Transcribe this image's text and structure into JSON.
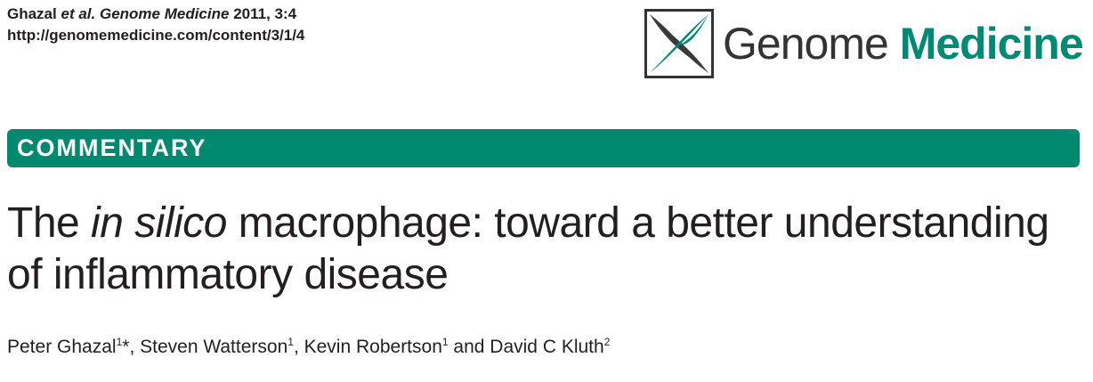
{
  "citation": {
    "authors_short": "Ghazal",
    "et_al": "et al.",
    "journal": "Genome Medicine",
    "year_vol": "2011, 3:4",
    "url": "http://genomemedicine.com/content/3/1/4"
  },
  "logo": {
    "word1": "Genome",
    "word2": "Medicine",
    "icon": "genome-medicine-logo-icon",
    "accent_color": "#008a73"
  },
  "banner": {
    "label": "COMMENTARY",
    "color": "#00896f"
  },
  "title": {
    "part1": "The ",
    "italic": "in silico",
    "part2": " macrophage: toward a better understanding of inflammatory disease"
  },
  "authors": [
    {
      "name": "Peter Ghazal",
      "affil": "1",
      "mark": "*"
    },
    {
      "name": "Steven Watterson",
      "affil": "1"
    },
    {
      "name": "Kevin Robertson",
      "affil": "1"
    },
    {
      "name": "David C Kluth",
      "affil": "2"
    }
  ],
  "authors_sep": {
    "comma": ", ",
    "and": " and "
  }
}
